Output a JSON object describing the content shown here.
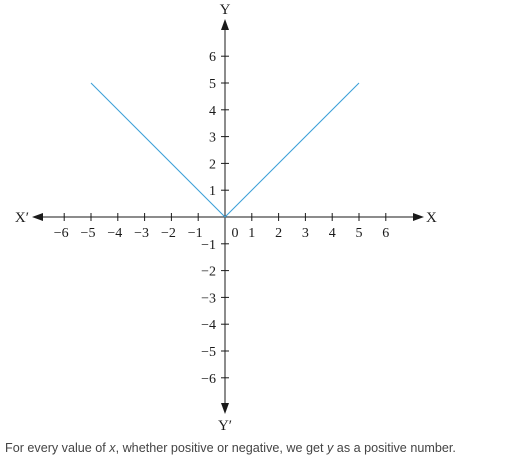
{
  "chart_data": {
    "type": "line",
    "x_axis_label": "X",
    "x_axis_negative_label": "X′",
    "y_axis_label": "Y",
    "y_axis_negative_label": "Y′",
    "xlim": [
      -6,
      6
    ],
    "ylim": [
      -6,
      6
    ],
    "x_tick_labels": [
      "−6",
      "−5",
      "−4",
      "−3",
      "−2",
      "−1",
      "0",
      "1",
      "2",
      "3",
      "4",
      "5",
      "6"
    ],
    "y_tick_labels": [
      "6",
      "5",
      "4",
      "3",
      "2",
      "1",
      "−1",
      "−2",
      "−3",
      "−4",
      "−5",
      "−6"
    ],
    "grid": false,
    "series": [
      {
        "color": "#3ea1d8",
        "x": [
          -5,
          0,
          5
        ],
        "y": [
          5,
          0,
          5
        ]
      }
    ]
  },
  "caption": {
    "parts": [
      {
        "text": "For every value of ",
        "italic": false
      },
      {
        "text": "x",
        "italic": true
      },
      {
        "text": ", whether positive or negative, we get ",
        "italic": false
      },
      {
        "text": "y",
        "italic": true
      },
      {
        "text": " as a positive number.",
        "italic": false
      }
    ]
  }
}
